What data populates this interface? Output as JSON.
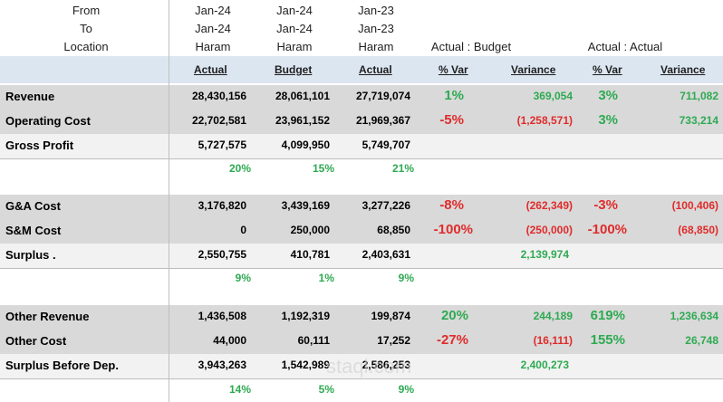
{
  "header": {
    "from_label": "From",
    "to_label": "To",
    "location_label": "Location",
    "columns": [
      {
        "from": "Jan-24",
        "to": "Jan-24",
        "location": "Haram"
      },
      {
        "from": "Jan-24",
        "to": "Jan-24",
        "location": "Haram"
      },
      {
        "from": "Jan-23",
        "to": "Jan-23",
        "location": "Haram"
      }
    ],
    "group_ab": "Actual : Budget",
    "group_aa": "Actual : Actual"
  },
  "col_heads": [
    "Actual",
    "Budget",
    "Actual",
    "% Var",
    "Variance",
    "% Var",
    "Variance"
  ],
  "rows": [
    {
      "label": "Revenue",
      "a": "28,430,156",
      "b": "28,061,101",
      "c": "27,719,074",
      "p1": "1%",
      "v1": "369,054",
      "p2": "3%",
      "v2": "711,082"
    },
    {
      "label": "Operating Cost",
      "a": "22,702,581",
      "b": "23,961,152",
      "c": "21,969,367",
      "p1": "-5%",
      "v1": "(1,258,571)",
      "p2": "3%",
      "v2": "733,214"
    },
    {
      "label": "Gross Profit",
      "a": "5,727,575",
      "b": "4,099,950",
      "c": "5,749,707"
    },
    {
      "label": "G&A Cost",
      "a": "3,176,820",
      "b": "3,439,169",
      "c": "3,277,226",
      "p1": "-8%",
      "v1": "(262,349)",
      "p2": "-3%",
      "v2": "(100,406)"
    },
    {
      "label": "S&M Cost",
      "a": "0",
      "b": "250,000",
      "c": "68,850",
      "p1": "-100%",
      "v1": "(250,000)",
      "p2": "-100%",
      "v2": "(68,850)"
    },
    {
      "label": "Surplus .",
      "a": "2,550,755",
      "b": "410,781",
      "c": "2,403,631",
      "v1": "2,139,974"
    },
    {
      "label": "Other Revenue",
      "a": "1,436,508",
      "b": "1,192,319",
      "c": "199,874",
      "p1": "20%",
      "v1": "244,189",
      "p2": "619%",
      "v2": "1,236,634"
    },
    {
      "label": "Other Cost",
      "a": "44,000",
      "b": "60,111",
      "c": "17,252",
      "p1": "-27%",
      "v1": "(16,111)",
      "p2": "155%",
      "v2": "26,748"
    },
    {
      "label": "Surplus Before Dep.",
      "a": "3,943,263",
      "b": "1,542,989",
      "c": "2,586,253",
      "v1": "2,400,273"
    }
  ],
  "margins": [
    {
      "a": "20%",
      "b": "15%",
      "c": "21%"
    },
    {
      "a": "9%",
      "b": "1%",
      "c": "9%"
    },
    {
      "a": "14%",
      "b": "5%",
      "c": "9%"
    }
  ],
  "watermark": "staql.com",
  "colors": {
    "positive": "#2eaa52",
    "negative": "#e02b2b",
    "header_bg": "#dce6f1",
    "row_bg": "#d9d9d9"
  }
}
